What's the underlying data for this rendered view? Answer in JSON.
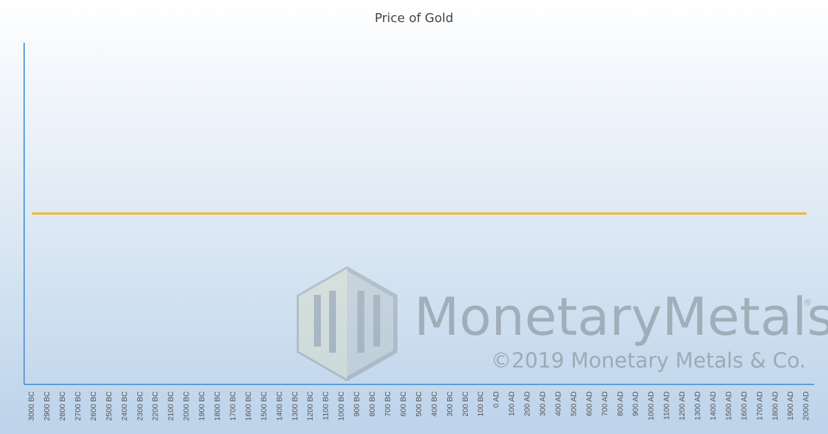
{
  "chart_data": {
    "type": "line",
    "title": "Price of Gold",
    "categories": [
      "3000 BC",
      "2900 BC",
      "2800 BC",
      "2700 BC",
      "2600 BC",
      "2500 BC",
      "2400 BC",
      "2300 BC",
      "2200 BC",
      "2100 BC",
      "2000 BC",
      "1900 BC",
      "1800 BC",
      "1700 BC",
      "1600 BC",
      "1500 BC",
      "1400 BC",
      "1300 BC",
      "1200 BC",
      "1100 BC",
      "1000 BC",
      "900 BC",
      "800 BC",
      "700 BC",
      "600 BC",
      "500 BC",
      "400 BC",
      "300 BC",
      "200 BC",
      "100 BC",
      "0 AD",
      "100 AD",
      "200 AD",
      "300 AD",
      "400 AD",
      "500 AD",
      "600 AD",
      "700 AD",
      "800 AD",
      "900 AD",
      "1000 AD",
      "1100 AD",
      "1200 AD",
      "1300 AD",
      "1400 AD",
      "1500 AD",
      "1600 AD",
      "1700 AD",
      "1800 AD",
      "1900 AD",
      "2000 AD"
    ],
    "values": [
      0.5,
      0.5,
      0.5,
      0.5,
      0.5,
      0.5,
      0.5,
      0.5,
      0.5,
      0.5,
      0.5,
      0.5,
      0.5,
      0.5,
      0.5,
      0.5,
      0.5,
      0.5,
      0.5,
      0.5,
      0.5,
      0.5,
      0.5,
      0.5,
      0.5,
      0.5,
      0.5,
      0.5,
      0.5,
      0.5,
      0.5,
      0.5,
      0.5,
      0.5,
      0.5,
      0.5,
      0.5,
      0.5,
      0.5,
      0.5,
      0.5,
      0.5,
      0.5,
      0.5,
      0.5,
      0.5,
      0.5,
      0.5,
      0.5,
      0.5,
      0.5
    ],
    "color": "#f2b51a",
    "ylim": [
      0,
      1
    ],
    "annotations": [
      "MonetaryMetals",
      "®",
      "©2019 Monetary Metals & Co."
    ]
  }
}
